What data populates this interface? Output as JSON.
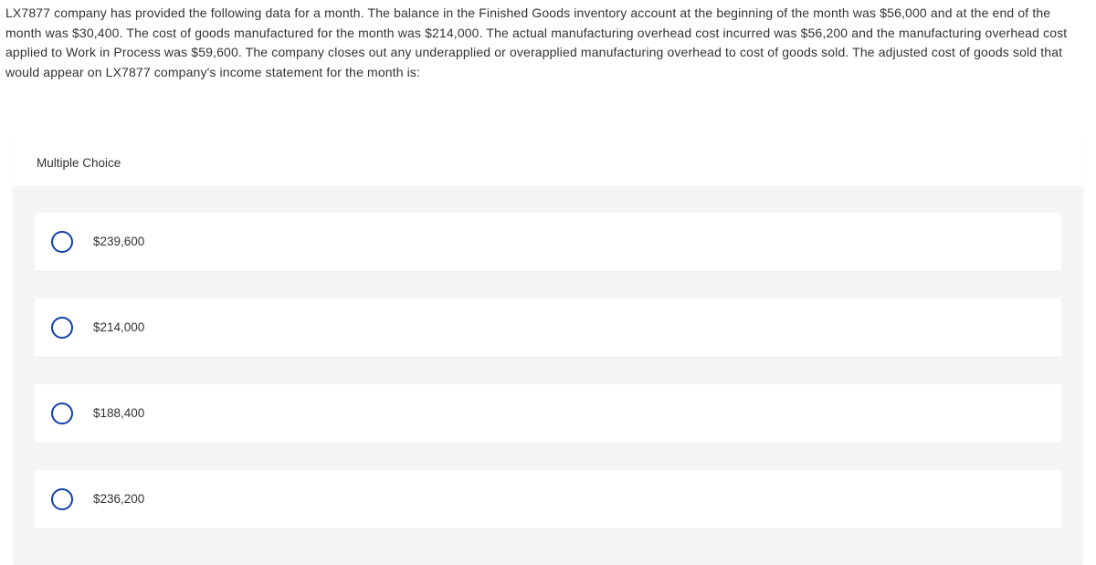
{
  "question": {
    "text": "LX7877 company has provided the following data for a month. The balance in the Finished Goods inventory account at the beginning of the month was $56,000 and at the end of the month was $30,400. The cost of goods manufactured for the month was $214,000. The actual manufacturing overhead cost incurred was $56,200 and the manufacturing overhead cost applied to Work in Process was $59,600. The company closes out any underapplied or overapplied manufacturing overhead to cost of goods sold. The adjusted cost of goods sold that would appear on LX7877 company's income statement for the month is:"
  },
  "panel": {
    "title": "Multiple Choice"
  },
  "options": [
    {
      "label": "$239,600"
    },
    {
      "label": "$214,000"
    },
    {
      "label": "$188,400"
    },
    {
      "label": "$236,200"
    }
  ],
  "style": {
    "radio_border_color": "#0f3fa8",
    "panel_bg": "#f5f5f5",
    "option_bg": "#ffffff",
    "text_color": "#333333"
  }
}
